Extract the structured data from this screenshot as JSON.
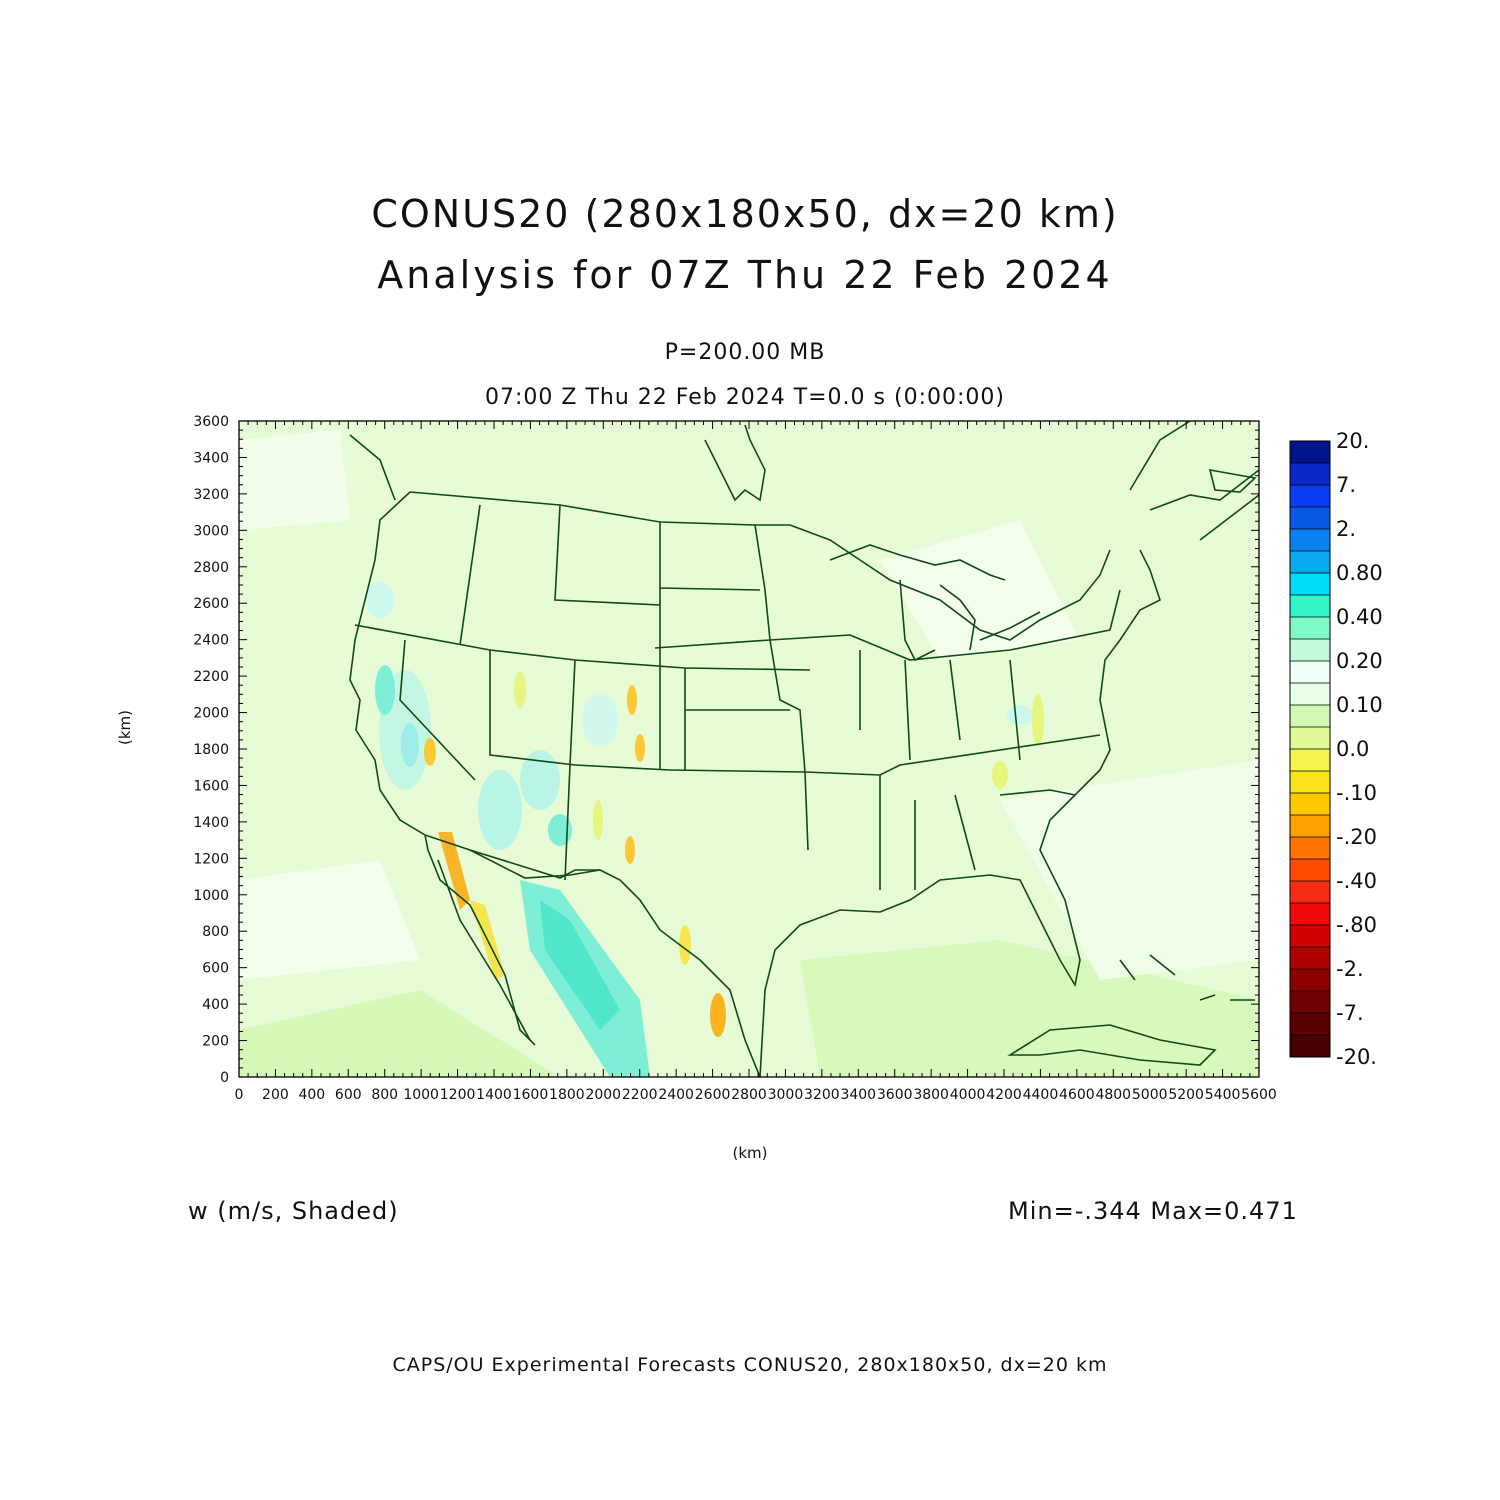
{
  "figure": {
    "title_line1": "CONUS20 (280x180x50, dx=20 km)",
    "title_line2": "Analysis for 07Z Thu 22 Feb 2024",
    "subtitle_line1": "P=200.00 MB",
    "subtitle_line2": "07:00 Z Thu 22 Feb 2024    T=0.0 s (0:00:00)",
    "x_axis_label": "(km)",
    "y_axis_label": "(km)",
    "field_label": "w (m/s, Shaded)",
    "min_max": "Min=-.344 Max=0.471",
    "footer": "CAPS/OU Experimental Forecasts  CONUS20, 280x180x50, dx=20 km"
  },
  "map_data": {
    "variable": "w",
    "units": "m/s",
    "level": "P=200.00 MB",
    "min": -0.344,
    "max": 0.471,
    "x_range_km": [
      0,
      5600
    ],
    "y_range_km": [
      0,
      3600
    ],
    "x_ticks": [
      0,
      200,
      400,
      600,
      800,
      1000,
      1200,
      1400,
      1600,
      1800,
      2000,
      2200,
      2400,
      2600,
      2800,
      3000,
      3200,
      3400,
      3600,
      3800,
      4000,
      4200,
      4400,
      4600,
      4800,
      5000,
      5200,
      5400,
      5600
    ],
    "y_ticks": [
      0,
      200,
      400,
      600,
      800,
      1000,
      1200,
      1400,
      1600,
      1800,
      2000,
      2200,
      2400,
      2600,
      2800,
      3000,
      3200,
      3400,
      3600
    ],
    "background_color": "#e8fbd7",
    "colorbar": {
      "labels": [
        "20.",
        "7.",
        "2.",
        "0.80",
        "0.40",
        "0.20",
        "0.10",
        "0.0",
        "-.10",
        "-.20",
        "-.40",
        "-.80",
        "-2.",
        "-7.",
        "-20."
      ],
      "colors": [
        "#00148c",
        "#0a28c8",
        "#0a3cf0",
        "#0a5ae6",
        "#0a82f0",
        "#0aaaf0",
        "#00dcf5",
        "#32f5c8",
        "#7dfac8",
        "#c3fadc",
        "#f0fff5",
        "#e6ffe6",
        "#d2fab4",
        "#e1fa96",
        "#f5f550",
        "#fae119",
        "#ffc800",
        "#ffa000",
        "#ff7300",
        "#ff4b00",
        "#f52d14",
        "#f00a0a",
        "#d20000",
        "#af0000",
        "#8c0000",
        "#730000",
        "#5a0000",
        "#460000"
      ]
    }
  }
}
